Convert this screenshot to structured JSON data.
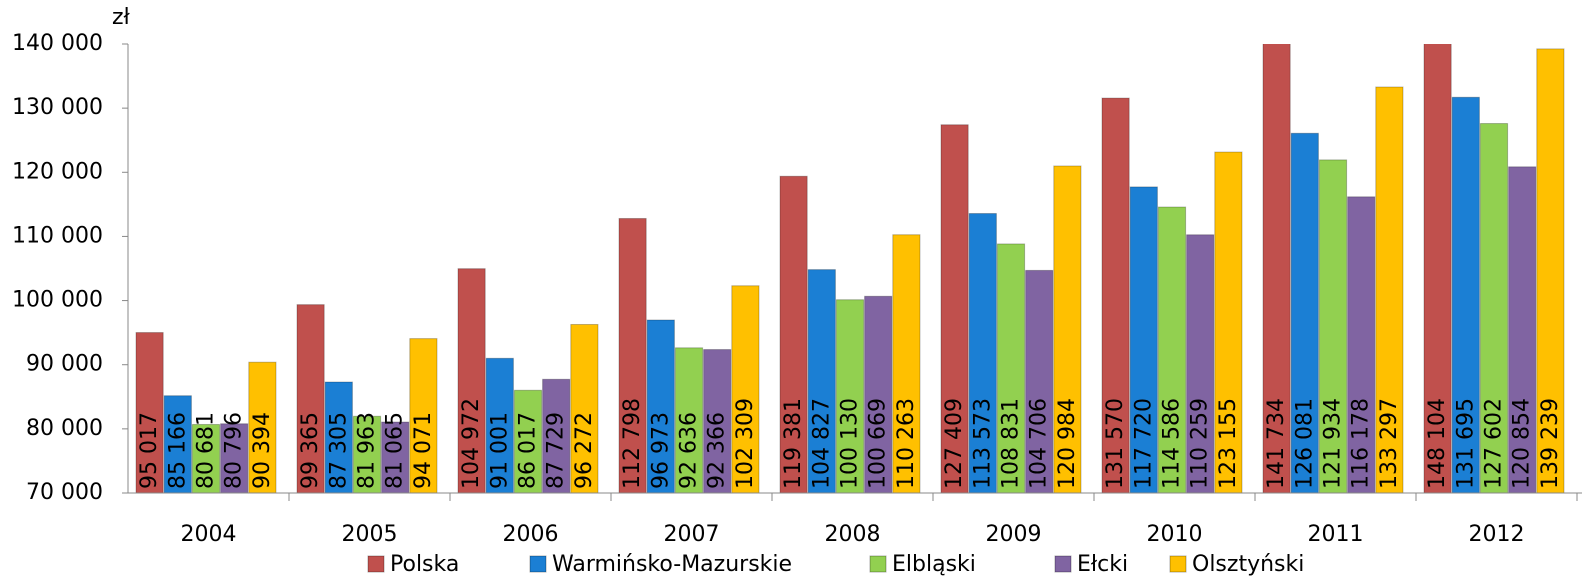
{
  "chart_data": {
    "type": "bar",
    "y_unit": "zł",
    "categories": [
      "2004",
      "2005",
      "2006",
      "2007",
      "2008",
      "2009",
      "2010",
      "2011",
      "2012"
    ],
    "series": [
      {
        "name": "Polska",
        "color": "#c0504d",
        "values": [
          95017,
          99365,
          104972,
          112798,
          119381,
          127409,
          131570,
          141734,
          148104
        ],
        "value_labels": [
          "95 017",
          "99 365",
          "104 972",
          "112 798",
          "119 381",
          "127 409",
          "131 570",
          "141 734",
          "148 104"
        ]
      },
      {
        "name": "Warmińsko-Mazurskie",
        "color": "#1b7fd4",
        "values": [
          85166,
          87305,
          91001,
          96973,
          104827,
          113573,
          117720,
          126081,
          131695
        ],
        "value_labels": [
          "85 166",
          "87 305",
          "91 001",
          "96 973",
          "104 827",
          "113 573",
          "117 720",
          "126 081",
          "131 695"
        ]
      },
      {
        "name": "Elbląski",
        "color": "#92d050",
        "values": [
          80681,
          81963,
          86017,
          92636,
          100130,
          108831,
          114586,
          121934,
          127602
        ],
        "value_labels": [
          "80 681",
          "81 963",
          "86 017",
          "92 636",
          "100 130",
          "108 831",
          "114 586",
          "121 934",
          "127 602"
        ]
      },
      {
        "name": "Ełcki",
        "color": "#8064a2",
        "values": [
          80796,
          81065,
          87729,
          92366,
          100669,
          104706,
          110259,
          116178,
          120854
        ],
        "value_labels": [
          "80 796",
          "81 065",
          "87 729",
          "92 366",
          "100 669",
          "104 706",
          "110 259",
          "116 178",
          "120 854"
        ]
      },
      {
        "name": "Olsztyński",
        "color": "#ffc000",
        "values": [
          90394,
          94071,
          96272,
          102309,
          110263,
          120984,
          123155,
          133297,
          139239
        ],
        "value_labels": [
          "90 394",
          "94 071",
          "96 272",
          "102 309",
          "110 263",
          "120 984",
          "123 155",
          "133 297",
          "139 239"
        ]
      }
    ],
    "ylim": [
      70000,
      140000
    ],
    "yticks": [
      {
        "value": 70000,
        "label": "70 000"
      },
      {
        "value": 80000,
        "label": "80 000"
      },
      {
        "value": 90000,
        "label": "90 000"
      },
      {
        "value": 100000,
        "label": "100 000"
      },
      {
        "value": 110000,
        "label": "110 000"
      },
      {
        "value": 120000,
        "label": "120 000"
      },
      {
        "value": 130000,
        "label": "130 000"
      },
      {
        "value": 140000,
        "label": "140 000"
      }
    ],
    "grid": false,
    "legend": "bottom"
  }
}
